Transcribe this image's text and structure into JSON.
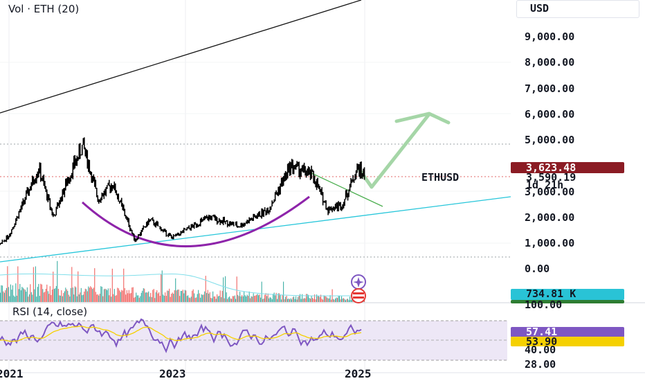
{
  "chart_data": {
    "type": "line",
    "symbol": "ETHUSD",
    "interval_tag": "1d 21h",
    "currency": "USD",
    "price_axis": [
      "9,000.00",
      "8,000.00",
      "7,000.00",
      "6,000.00",
      "5,000.00",
      "3,000.00",
      "2,000.00",
      "1,000.00",
      "0.00"
    ],
    "time_axis": [
      "2021",
      "2023",
      "2025"
    ],
    "last_price": "3,623.48",
    "current_price": "3,590.19",
    "price_series_approx": [
      {
        "t": "2020-10",
        "v": 380
      },
      {
        "t": "2021-01",
        "v": 1300
      },
      {
        "t": "2021-05",
        "v": 3900
      },
      {
        "t": "2021-07",
        "v": 2000
      },
      {
        "t": "2021-09",
        "v": 3500
      },
      {
        "t": "2021-11",
        "v": 4800
      },
      {
        "t": "2022-01",
        "v": 2700
      },
      {
        "t": "2022-03",
        "v": 3300
      },
      {
        "t": "2022-06",
        "v": 1100
      },
      {
        "t": "2022-08",
        "v": 1900
      },
      {
        "t": "2022-11",
        "v": 1200
      },
      {
        "t": "2023-04",
        "v": 2000
      },
      {
        "t": "2023-08",
        "v": 1650
      },
      {
        "t": "2023-12",
        "v": 2300
      },
      {
        "t": "2024-03",
        "v": 4000
      },
      {
        "t": "2024-06",
        "v": 3600
      },
      {
        "t": "2024-08",
        "v": 2300
      },
      {
        "t": "2024-10",
        "v": 2500
      },
      {
        "t": "2024-12",
        "v": 3900
      },
      {
        "t": "2025-01",
        "v": 3600
      }
    ],
    "volume": {
      "title": "Vol · ETH (20)",
      "value": "734.81 K"
    },
    "rsi": {
      "title": "RSI (14, close)",
      "axis": [
        "100.00",
        "40.00",
        "28.00"
      ],
      "rsi_value": "57.41",
      "ma_value": "53.90",
      "colors": {
        "rsi": "#7e57c2",
        "ma": "#f5d000"
      }
    },
    "colors": {
      "up": "#26a69a",
      "down": "#ef5350",
      "candle": "#000000",
      "last_price_tag": "#8b1c24",
      "volume_tag": "#29c3d6",
      "rsi_tag": "#7e57c2",
      "ma_tag": "#f5d000",
      "cup": "#8e24aa",
      "arrow": "#8fd18f",
      "support_line": "#26c6da"
    }
  }
}
